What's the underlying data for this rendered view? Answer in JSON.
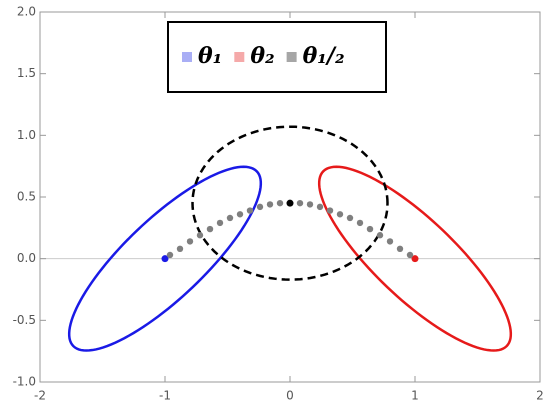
{
  "chart_data": {
    "type": "scatter",
    "xlim": [
      -2,
      2
    ],
    "ylim": [
      -1,
      2
    ],
    "xticks": [
      -2,
      -1,
      0,
      1,
      2
    ],
    "yticks": [
      {
        "value": -1,
        "label": "-1.0"
      },
      -0.5,
      {
        "value": 0,
        "label": "0.0"
      },
      0.5,
      {
        "value": 1,
        "label": "1.0"
      },
      1.5,
      {
        "value": 2,
        "label": "2.0"
      }
    ],
    "legend": "top",
    "series": [
      {
        "name": "θ₁",
        "legend_color": "#a9aef5",
        "color": "#1a1ae6",
        "center": {
          "x": -1,
          "y": 0
        },
        "ellipse": {
          "cx": -1,
          "cy": 0,
          "rx": 1.02,
          "ry": 0.32,
          "angle": 44,
          "color": "#1a1ae6",
          "dashed": false
        }
      },
      {
        "name": "θ₂",
        "legend_color": "#f5a9a9",
        "color": "#e61a1a",
        "center": {
          "x": 1,
          "y": 0
        },
        "ellipse": {
          "cx": 1,
          "cy": 0,
          "rx": 1.02,
          "ry": 0.32,
          "angle": -44,
          "color": "#e61a1a",
          "dashed": false
        }
      },
      {
        "name": "θ₁/₂",
        "legend_color": "#a6a6a6",
        "color": "#000000",
        "dot_color": "#7f7f7f",
        "center": {
          "x": 0,
          "y": 0.45
        },
        "x": [
          -0.96,
          -0.88,
          -0.8,
          -0.72,
          -0.64,
          -0.56,
          -0.48,
          -0.4,
          -0.32,
          -0.24,
          -0.16,
          -0.08,
          0,
          0.08,
          0.16,
          0.24,
          0.32,
          0.4,
          0.48,
          0.56,
          0.64,
          0.72,
          0.8,
          0.88,
          0.96
        ],
        "y": [
          0.03,
          0.08,
          0.14,
          0.19,
          0.24,
          0.29,
          0.33,
          0.36,
          0.39,
          0.42,
          0.44,
          0.45,
          0.45,
          0.45,
          0.44,
          0.42,
          0.39,
          0.36,
          0.33,
          0.29,
          0.24,
          0.19,
          0.14,
          0.08,
          0.03
        ],
        "ellipse": {
          "cx": 0,
          "cy": 0.45,
          "rx": 0.78,
          "ry": 0.62,
          "angle": 0,
          "color": "#000000",
          "dashed": true
        }
      }
    ]
  }
}
